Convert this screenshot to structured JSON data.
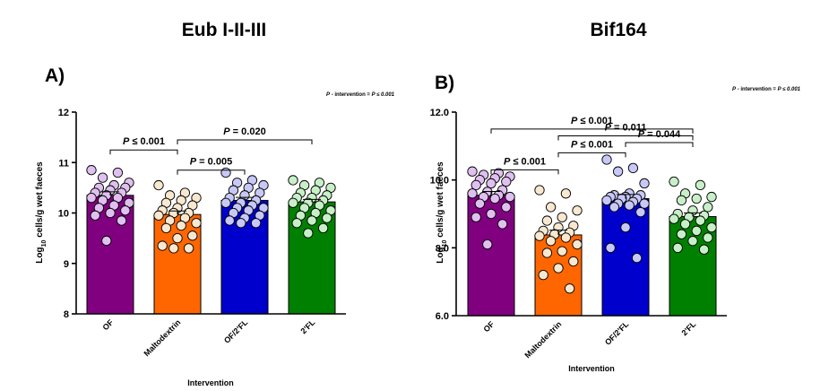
{
  "chart_data": [
    {
      "type": "bar",
      "title": "Eub I-II-III",
      "panel_label": "A)",
      "note_prefix": "P",
      "note_text": " - intervention = ",
      "note_value": "P ≤ 0.001",
      "xlabel": "Intervention",
      "ylabel": "Log10 cells/g wet faeces",
      "ylabel_parts": [
        "Log",
        "10",
        " cells/g wet faeces"
      ],
      "ylim": [
        8,
        12
      ],
      "yticks": [
        8,
        9,
        10,
        11,
        12
      ],
      "ytick_labels": [
        "8",
        "9",
        "10",
        "11",
        "12"
      ],
      "categories": [
        "OF",
        "Maltodextrin",
        "OF/2'FL",
        "2'FL"
      ],
      "values": [
        10.35,
        9.97,
        10.25,
        10.22
      ],
      "errors": [
        0.07,
        0.07,
        0.06,
        0.05
      ],
      "bar_colors": [
        "#800080",
        "#ff6600",
        "#0000cc",
        "#008000"
      ],
      "point_colors": [
        "#e0c0f0",
        "#f8e8d0",
        "#c8c8f8",
        "#c8f0c8"
      ],
      "points": [
        [
          10.85,
          10.8,
          10.7,
          10.6,
          10.55,
          10.5,
          10.5,
          10.45,
          10.4,
          10.4,
          10.35,
          10.3,
          10.3,
          10.25,
          10.2,
          10.15,
          10.1,
          10.05,
          10.0,
          9.95,
          9.85,
          9.45
        ],
        [
          10.55,
          10.4,
          10.35,
          10.3,
          10.25,
          10.2,
          10.15,
          10.1,
          10.05,
          10.0,
          10.0,
          9.95,
          9.9,
          9.85,
          9.8,
          9.75,
          9.7,
          9.55,
          9.5,
          9.35,
          9.3,
          9.3
        ],
        [
          10.8,
          10.65,
          10.6,
          10.55,
          10.5,
          10.45,
          10.4,
          10.35,
          10.3,
          10.25,
          10.2,
          10.2,
          10.15,
          10.1,
          10.1,
          10.05,
          10.0,
          9.95,
          9.9,
          9.85,
          9.8,
          9.8
        ],
        [
          10.65,
          10.6,
          10.55,
          10.5,
          10.45,
          10.4,
          10.35,
          10.3,
          10.3,
          10.25,
          10.2,
          10.2,
          10.15,
          10.1,
          10.05,
          10.0,
          9.95,
          9.9,
          9.85,
          9.8,
          9.7,
          9.6
        ]
      ],
      "comparisons": [
        {
          "from": 0,
          "to": 1,
          "label_prefix": "P",
          "label_rest": " ≤ 0.001",
          "y": 11.25
        },
        {
          "from": 1,
          "to": 3,
          "label_prefix": "P",
          "label_rest": " = 0.020",
          "y": 11.45
        },
        {
          "from": 1,
          "to": 2,
          "label_prefix": "P",
          "label_rest": " = 0.005",
          "y": 10.85
        }
      ]
    },
    {
      "type": "bar",
      "title": "Bif164",
      "panel_label": "B)",
      "note_prefix": "P",
      "note_text": " - intervention = ",
      "note_value": "P ≤ 0.001",
      "xlabel": "Intervention",
      "ylabel": "Log10 cells/g wet faeces",
      "ylabel_parts": [
        "Log",
        "10",
        " cells/g wet faeces"
      ],
      "ylim": [
        6,
        12
      ],
      "yticks": [
        6,
        8,
        10,
        12
      ],
      "ytick_labels": [
        "6.0",
        "8.0",
        "10.0",
        "12.0"
      ],
      "categories": [
        "OF",
        "Maltodextrin",
        "OF/2'FL",
        "2'FL"
      ],
      "values": [
        9.55,
        8.38,
        9.45,
        8.92
      ],
      "errors": [
        0.11,
        0.14,
        0.12,
        0.11
      ],
      "bar_colors": [
        "#800080",
        "#ff6600",
        "#0000cc",
        "#008000"
      ],
      "point_colors": [
        "#e0c0f0",
        "#f8e8d0",
        "#c8c8f8",
        "#c8f0c8"
      ],
      "points": [
        [
          10.25,
          10.2,
          10.15,
          10.1,
          10.05,
          10.0,
          9.95,
          9.9,
          9.85,
          9.7,
          9.65,
          9.6,
          9.55,
          9.5,
          9.5,
          9.45,
          9.3,
          9.2,
          9.0,
          8.9,
          8.7,
          8.1
        ],
        [
          9.7,
          9.6,
          9.2,
          9.1,
          8.9,
          8.8,
          8.65,
          8.6,
          8.5,
          8.45,
          8.4,
          8.35,
          8.3,
          8.2,
          8.1,
          7.9,
          7.85,
          7.6,
          7.4,
          7.2,
          6.8
        ],
        [
          10.6,
          10.35,
          10.25,
          9.9,
          9.6,
          9.55,
          9.55,
          9.5,
          9.5,
          9.45,
          9.45,
          9.4,
          9.35,
          9.3,
          9.3,
          9.25,
          9.2,
          9.05,
          8.6,
          8.0,
          7.7
        ],
        [
          9.95,
          9.85,
          9.6,
          9.5,
          9.45,
          9.4,
          9.2,
          9.1,
          9.0,
          8.95,
          8.9,
          8.85,
          8.8,
          8.7,
          8.6,
          8.5,
          8.4,
          8.3,
          8.2,
          8.0,
          7.95
        ]
      ],
      "comparisons": [
        {
          "from": 0,
          "to": 3,
          "label_prefix": "P",
          "label_rest": " ≤ 0.001",
          "y": 11.5
        },
        {
          "from": 1,
          "to": 3,
          "label_prefix": "P",
          "label_rest": " = 0.011",
          "y": 11.3
        },
        {
          "from": 1,
          "to": 2,
          "label_prefix": "P",
          "label_rest": " ≤ 0.001",
          "y": 10.8
        },
        {
          "from": 2,
          "to": 3,
          "label_prefix": "P",
          "label_rest": " = 0.044",
          "y": 11.1
        },
        {
          "from": 0,
          "to": 1,
          "label_prefix": "P",
          "label_rest": " ≤ 0.001",
          "y": 10.3
        }
      ]
    }
  ]
}
